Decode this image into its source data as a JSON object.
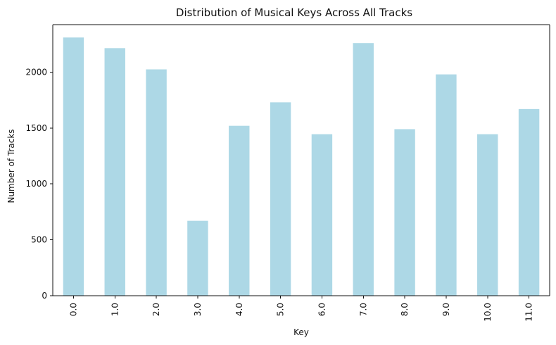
{
  "chart_data": {
    "type": "bar",
    "title": "Distribution of Musical Keys Across All Tracks",
    "xlabel": "Key",
    "ylabel": "Number of Tracks",
    "categories": [
      "0.0",
      "1.0",
      "2.0",
      "3.0",
      "4.0",
      "5.0",
      "6.0",
      "7.0",
      "8.0",
      "9.0",
      "10.0",
      "11.0"
    ],
    "values": [
      2310,
      2215,
      2025,
      670,
      1520,
      1730,
      1445,
      2260,
      1490,
      1980,
      1445,
      1670
    ],
    "ylim": [
      0,
      2425
    ],
    "yticks": [
      0,
      500,
      1000,
      1500,
      2000
    ],
    "ytick_labels": [
      "0",
      "500",
      "1000",
      "1500",
      "2000"
    ],
    "grid": false,
    "legend": "none",
    "colors": {
      "bar": "#add8e6",
      "axis": "#111111",
      "text": "#111111"
    }
  }
}
